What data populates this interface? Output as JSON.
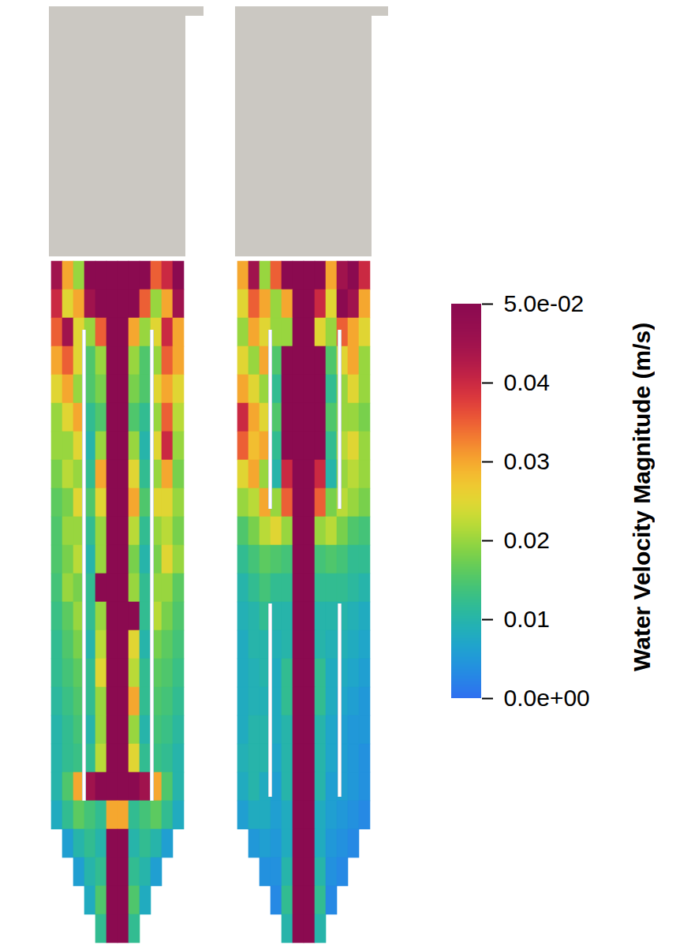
{
  "chart_data": {
    "type": "heatmap",
    "panels": [
      {
        "cells": [
          [
            0.045,
            0.03,
            0.02,
            0.05,
            0.05,
            0.05,
            0.05,
            0.05,
            0.05,
            0.035,
            0.04,
            0.05
          ],
          [
            0.04,
            0.025,
            0.03,
            0.045,
            0.05,
            0.05,
            0.05,
            0.05,
            0.035,
            0.02,
            0.03,
            0.045
          ],
          [
            0.035,
            0.045,
            0.025,
            0.02,
            0.035,
            0.05,
            0.05,
            0.03,
            0.02,
            0.025,
            0.04,
            0.03
          ],
          [
            0.03,
            0.035,
            0.025,
            0.015,
            0.02,
            0.05,
            0.05,
            0.02,
            0.015,
            0.02,
            0.035,
            0.03
          ],
          [
            0.025,
            0.03,
            0.02,
            0.015,
            0.018,
            0.05,
            0.05,
            0.018,
            0.015,
            0.025,
            0.03,
            0.025
          ],
          [
            0.02,
            0.025,
            0.03,
            0.012,
            0.015,
            0.05,
            0.05,
            0.015,
            0.012,
            0.02,
            0.035,
            0.022
          ],
          [
            0.02,
            0.02,
            0.025,
            0.01,
            0.02,
            0.05,
            0.05,
            0.02,
            0.01,
            0.025,
            0.04,
            0.02
          ],
          [
            0.018,
            0.022,
            0.02,
            0.012,
            0.03,
            0.05,
            0.05,
            0.025,
            0.012,
            0.02,
            0.03,
            0.018
          ],
          [
            0.016,
            0.018,
            0.025,
            0.015,
            0.025,
            0.05,
            0.05,
            0.03,
            0.015,
            0.025,
            0.025,
            0.02
          ],
          [
            0.015,
            0.02,
            0.02,
            0.012,
            0.02,
            0.05,
            0.05,
            0.022,
            0.012,
            0.02,
            0.022,
            0.018
          ],
          [
            0.015,
            0.018,
            0.022,
            0.01,
            0.02,
            0.05,
            0.05,
            0.018,
            0.01,
            0.018,
            0.025,
            0.02
          ],
          [
            0.014,
            0.02,
            0.018,
            0.012,
            0.05,
            0.05,
            0.05,
            0.02,
            0.012,
            0.02,
            0.02,
            0.016
          ],
          [
            0.013,
            0.016,
            0.02,
            0.012,
            0.02,
            0.05,
            0.05,
            0.05,
            0.012,
            0.022,
            0.018,
            0.015
          ],
          [
            0.012,
            0.015,
            0.018,
            0.01,
            0.022,
            0.05,
            0.05,
            0.025,
            0.01,
            0.018,
            0.016,
            0.014
          ],
          [
            0.012,
            0.014,
            0.016,
            0.012,
            0.025,
            0.05,
            0.05,
            0.022,
            0.012,
            0.016,
            0.015,
            0.013
          ],
          [
            0.011,
            0.013,
            0.015,
            0.012,
            0.02,
            0.05,
            0.05,
            0.03,
            0.012,
            0.015,
            0.014,
            0.012
          ],
          [
            0.01,
            0.012,
            0.014,
            0.01,
            0.02,
            0.05,
            0.05,
            0.02,
            0.01,
            0.014,
            0.013,
            0.011
          ],
          [
            0.01,
            0.012,
            0.013,
            0.012,
            0.022,
            0.05,
            0.05,
            0.025,
            0.012,
            0.013,
            0.012,
            0.01
          ],
          [
            0.01,
            0.015,
            0.03,
            0.045,
            0.05,
            0.05,
            0.05,
            0.05,
            0.045,
            0.03,
            0.015,
            0.01
          ],
          [
            0.008,
            0.012,
            0.016,
            0.014,
            0.012,
            0.03,
            0.03,
            0.012,
            0.014,
            0.016,
            0.012,
            0.008
          ],
          [
            null,
            0.006,
            0.01,
            0.012,
            0.01,
            0.05,
            0.05,
            0.01,
            0.012,
            0.01,
            0.006,
            null
          ],
          [
            null,
            null,
            0.006,
            0.01,
            0.012,
            0.05,
            0.05,
            0.012,
            0.01,
            0.006,
            null,
            null
          ],
          [
            null,
            null,
            null,
            0.008,
            0.015,
            0.05,
            0.05,
            0.015,
            0.008,
            null,
            null,
            null
          ],
          [
            null,
            null,
            null,
            null,
            0.012,
            0.05,
            0.05,
            0.012,
            null,
            null,
            null,
            null
          ]
        ]
      },
      {
        "cells": [
          [
            0.03,
            0.045,
            0.02,
            0.035,
            0.05,
            0.05,
            0.05,
            0.05,
            0.03,
            0.045,
            0.05,
            0.04
          ],
          [
            0.025,
            0.035,
            0.03,
            0.02,
            0.03,
            0.05,
            0.05,
            0.04,
            0.025,
            0.05,
            0.045,
            0.03
          ],
          [
            0.02,
            0.03,
            0.025,
            0.02,
            0.02,
            0.05,
            0.05,
            0.025,
            0.02,
            0.035,
            0.03,
            0.025
          ],
          [
            0.025,
            0.02,
            0.03,
            0.015,
            0.05,
            0.05,
            0.05,
            0.05,
            0.015,
            0.025,
            0.03,
            0.02
          ],
          [
            0.03,
            0.025,
            0.02,
            0.012,
            0.05,
            0.05,
            0.05,
            0.05,
            0.012,
            0.02,
            0.025,
            0.02
          ],
          [
            0.04,
            0.03,
            0.025,
            0.015,
            0.05,
            0.05,
            0.05,
            0.05,
            0.015,
            0.02,
            0.02,
            0.018
          ],
          [
            0.035,
            0.028,
            0.03,
            0.012,
            0.05,
            0.05,
            0.05,
            0.05,
            0.012,
            0.022,
            0.025,
            0.02
          ],
          [
            0.025,
            0.03,
            0.02,
            0.01,
            0.04,
            0.05,
            0.05,
            0.04,
            0.01,
            0.02,
            0.022,
            0.02
          ],
          [
            0.02,
            0.022,
            0.03,
            0.02,
            0.035,
            0.05,
            0.05,
            0.035,
            0.018,
            0.022,
            0.02,
            0.018
          ],
          [
            0.015,
            0.018,
            0.022,
            0.025,
            0.02,
            0.05,
            0.05,
            0.02,
            0.022,
            0.018,
            0.015,
            0.014
          ],
          [
            0.012,
            0.014,
            0.016,
            0.015,
            0.014,
            0.05,
            0.05,
            0.014,
            0.015,
            0.014,
            0.012,
            0.012
          ],
          [
            0.01,
            0.012,
            0.014,
            0.012,
            0.012,
            0.05,
            0.05,
            0.012,
            0.012,
            0.012,
            0.011,
            0.01
          ],
          [
            0.009,
            0.01,
            0.012,
            0.01,
            0.01,
            0.05,
            0.05,
            0.01,
            0.01,
            0.01,
            0.009,
            0.008
          ],
          [
            0.008,
            0.01,
            0.01,
            0.009,
            0.01,
            0.05,
            0.05,
            0.01,
            0.009,
            0.009,
            0.008,
            0.007
          ],
          [
            0.008,
            0.009,
            0.01,
            0.008,
            0.012,
            0.05,
            0.05,
            0.012,
            0.008,
            0.008,
            0.007,
            0.006
          ],
          [
            0.008,
            0.009,
            0.009,
            0.008,
            0.012,
            0.05,
            0.05,
            0.012,
            0.008,
            0.007,
            0.006,
            0.005
          ],
          [
            0.008,
            0.01,
            0.01,
            0.008,
            0.01,
            0.05,
            0.05,
            0.01,
            0.007,
            0.006,
            0.005,
            0.005
          ],
          [
            0.009,
            0.01,
            0.01,
            0.007,
            0.01,
            0.05,
            0.05,
            0.01,
            0.007,
            0.006,
            0.005,
            0.004
          ],
          [
            0.008,
            0.01,
            0.008,
            0.006,
            0.01,
            0.05,
            0.05,
            0.01,
            0.006,
            0.006,
            0.005,
            0.004
          ],
          [
            0.006,
            0.008,
            0.008,
            0.006,
            0.008,
            0.05,
            0.05,
            0.008,
            0.006,
            0.005,
            0.004,
            0.003
          ],
          [
            null,
            0.005,
            0.006,
            0.005,
            0.008,
            0.05,
            0.05,
            0.008,
            0.005,
            0.004,
            0.003,
            null
          ],
          [
            null,
            null,
            0.004,
            0.004,
            0.01,
            0.05,
            0.05,
            0.01,
            0.004,
            0.003,
            null,
            null
          ],
          [
            null,
            null,
            null,
            0.003,
            0.012,
            0.05,
            0.05,
            0.012,
            0.003,
            null,
            null,
            null
          ],
          [
            null,
            null,
            null,
            null,
            0.01,
            0.05,
            0.05,
            0.01,
            null,
            null,
            null,
            null
          ]
        ]
      }
    ],
    "colorbar": {
      "title": "Water Velocity Magnitude (m/s)",
      "range": [
        0,
        0.05
      ],
      "ticks": [
        {
          "value": 0.05,
          "label": "5.0e-02"
        },
        0.04,
        0.03,
        0.02,
        0.01,
        {
          "value": 0,
          "label": "0.0e+00"
        }
      ]
    }
  }
}
